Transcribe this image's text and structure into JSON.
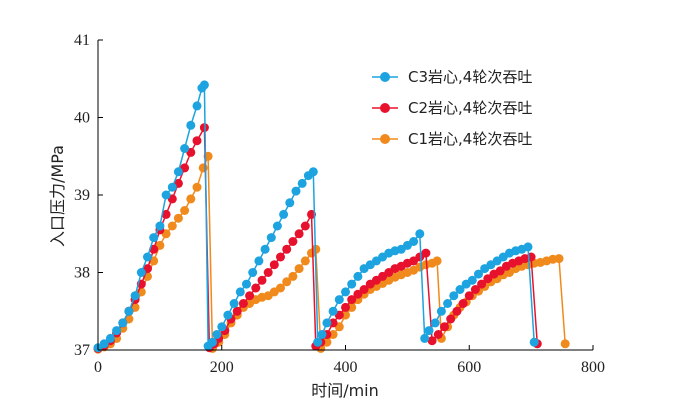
{
  "chart_data": {
    "type": "line",
    "xlabel": "时间/min",
    "ylabel": "入口压力/MPa",
    "xlim": [
      0,
      800
    ],
    "ylim": [
      37,
      41
    ],
    "xticks": [
      "0",
      "200",
      "400",
      "600",
      "800"
    ],
    "yticks": [
      "37",
      "38",
      "39",
      "40",
      "41"
    ],
    "grid": false,
    "legend_position": "top-right",
    "series": [
      {
        "name": "C3岩心,4轮次吞吐",
        "color": "#1ca3e0",
        "points": [
          [
            0,
            37.03
          ],
          [
            10,
            37.08
          ],
          [
            20,
            37.15
          ],
          [
            30,
            37.25
          ],
          [
            40,
            37.35
          ],
          [
            50,
            37.5
          ],
          [
            60,
            37.7
          ],
          [
            70,
            38.0
          ],
          [
            80,
            38.2
          ],
          [
            90,
            38.45
          ],
          [
            100,
            38.6
          ],
          [
            110,
            39.0
          ],
          [
            120,
            39.1
          ],
          [
            130,
            39.3
          ],
          [
            140,
            39.6
          ],
          [
            150,
            39.9
          ],
          [
            160,
            40.15
          ],
          [
            168,
            40.38
          ],
          [
            172,
            40.42
          ],
          [
            178,
            37.05
          ],
          [
            185,
            37.1
          ],
          [
            192,
            37.2
          ],
          [
            200,
            37.3
          ],
          [
            210,
            37.45
          ],
          [
            220,
            37.6
          ],
          [
            230,
            37.75
          ],
          [
            240,
            37.85
          ],
          [
            250,
            38.0
          ],
          [
            260,
            38.15
          ],
          [
            270,
            38.3
          ],
          [
            280,
            38.45
          ],
          [
            290,
            38.6
          ],
          [
            300,
            38.75
          ],
          [
            310,
            38.9
          ],
          [
            320,
            39.05
          ],
          [
            330,
            39.15
          ],
          [
            340,
            39.25
          ],
          [
            348,
            39.3
          ],
          [
            355,
            37.1
          ],
          [
            362,
            37.2
          ],
          [
            370,
            37.35
          ],
          [
            380,
            37.5
          ],
          [
            390,
            37.65
          ],
          [
            400,
            37.75
          ],
          [
            410,
            37.85
          ],
          [
            420,
            37.95
          ],
          [
            430,
            38.05
          ],
          [
            440,
            38.1
          ],
          [
            450,
            38.15
          ],
          [
            460,
            38.2
          ],
          [
            470,
            38.25
          ],
          [
            480,
            38.28
          ],
          [
            490,
            38.3
          ],
          [
            500,
            38.35
          ],
          [
            510,
            38.4
          ],
          [
            520,
            38.5
          ],
          [
            528,
            37.15
          ],
          [
            535,
            37.25
          ],
          [
            545,
            37.35
          ],
          [
            555,
            37.5
          ],
          [
            565,
            37.6
          ],
          [
            575,
            37.7
          ],
          [
            585,
            37.78
          ],
          [
            595,
            37.85
          ],
          [
            605,
            37.9
          ],
          [
            615,
            37.98
          ],
          [
            625,
            38.05
          ],
          [
            635,
            38.1
          ],
          [
            645,
            38.15
          ],
          [
            655,
            38.2
          ],
          [
            665,
            38.25
          ],
          [
            675,
            38.28
          ],
          [
            685,
            38.3
          ],
          [
            695,
            38.33
          ],
          [
            705,
            37.1
          ]
        ]
      },
      {
        "name": "C2岩心,4轮次吞吐",
        "color": "#e8112d",
        "points": [
          [
            0,
            37.02
          ],
          [
            10,
            37.06
          ],
          [
            20,
            37.12
          ],
          [
            30,
            37.22
          ],
          [
            40,
            37.35
          ],
          [
            50,
            37.5
          ],
          [
            60,
            37.65
          ],
          [
            70,
            37.85
          ],
          [
            80,
            38.05
          ],
          [
            90,
            38.3
          ],
          [
            100,
            38.55
          ],
          [
            110,
            38.75
          ],
          [
            120,
            38.95
          ],
          [
            130,
            39.15
          ],
          [
            140,
            39.35
          ],
          [
            150,
            39.55
          ],
          [
            160,
            39.7
          ],
          [
            172,
            39.87
          ],
          [
            180,
            37.03
          ],
          [
            188,
            37.08
          ],
          [
            195,
            37.15
          ],
          [
            205,
            37.25
          ],
          [
            215,
            37.4
          ],
          [
            225,
            37.5
          ],
          [
            235,
            37.6
          ],
          [
            245,
            37.7
          ],
          [
            255,
            37.8
          ],
          [
            265,
            37.9
          ],
          [
            275,
            38.0
          ],
          [
            285,
            38.1
          ],
          [
            295,
            38.2
          ],
          [
            305,
            38.3
          ],
          [
            315,
            38.4
          ],
          [
            325,
            38.5
          ],
          [
            335,
            38.6
          ],
          [
            345,
            38.75
          ],
          [
            352,
            37.05
          ],
          [
            360,
            37.1
          ],
          [
            370,
            37.2
          ],
          [
            380,
            37.35
          ],
          [
            390,
            37.45
          ],
          [
            400,
            37.55
          ],
          [
            410,
            37.65
          ],
          [
            420,
            37.72
          ],
          [
            430,
            37.78
          ],
          [
            440,
            37.85
          ],
          [
            450,
            37.9
          ],
          [
            460,
            37.95
          ],
          [
            470,
            38.0
          ],
          [
            480,
            38.05
          ],
          [
            490,
            38.08
          ],
          [
            500,
            38.12
          ],
          [
            510,
            38.15
          ],
          [
            520,
            38.2
          ],
          [
            530,
            38.25
          ],
          [
            540,
            37.12
          ],
          [
            550,
            37.2
          ],
          [
            560,
            37.3
          ],
          [
            570,
            37.4
          ],
          [
            580,
            37.5
          ],
          [
            590,
            37.6
          ],
          [
            600,
            37.7
          ],
          [
            610,
            37.78
          ],
          [
            620,
            37.85
          ],
          [
            630,
            37.92
          ],
          [
            640,
            37.98
          ],
          [
            650,
            38.02
          ],
          [
            660,
            38.08
          ],
          [
            670,
            38.12
          ],
          [
            680,
            38.15
          ],
          [
            690,
            38.18
          ],
          [
            700,
            38.2
          ],
          [
            710,
            37.08
          ]
        ]
      },
      {
        "name": "C1岩心,4轮次吞吐",
        "color": "#f08a1c",
        "points": [
          [
            0,
            37.01
          ],
          [
            10,
            37.04
          ],
          [
            20,
            37.08
          ],
          [
            30,
            37.15
          ],
          [
            40,
            37.28
          ],
          [
            50,
            37.4
          ],
          [
            60,
            37.55
          ],
          [
            70,
            37.75
          ],
          [
            80,
            37.95
          ],
          [
            90,
            38.15
          ],
          [
            100,
            38.35
          ],
          [
            110,
            38.5
          ],
          [
            120,
            38.6
          ],
          [
            130,
            38.7
          ],
          [
            140,
            38.8
          ],
          [
            150,
            38.95
          ],
          [
            160,
            39.1
          ],
          [
            170,
            39.35
          ],
          [
            178,
            39.5
          ],
          [
            185,
            37.02
          ],
          [
            195,
            37.1
          ],
          [
            205,
            37.2
          ],
          [
            215,
            37.35
          ],
          [
            225,
            37.45
          ],
          [
            235,
            37.55
          ],
          [
            245,
            37.6
          ],
          [
            255,
            37.65
          ],
          [
            265,
            37.68
          ],
          [
            275,
            37.7
          ],
          [
            285,
            37.75
          ],
          [
            295,
            37.8
          ],
          [
            305,
            37.88
          ],
          [
            315,
            37.95
          ],
          [
            325,
            38.05
          ],
          [
            335,
            38.15
          ],
          [
            345,
            38.25
          ],
          [
            352,
            38.3
          ],
          [
            360,
            37.02
          ],
          [
            370,
            37.1
          ],
          [
            380,
            37.2
          ],
          [
            390,
            37.3
          ],
          [
            400,
            37.45
          ],
          [
            410,
            37.55
          ],
          [
            420,
            37.65
          ],
          [
            430,
            37.72
          ],
          [
            440,
            37.78
          ],
          [
            450,
            37.82
          ],
          [
            460,
            37.86
          ],
          [
            470,
            37.9
          ],
          [
            480,
            37.94
          ],
          [
            490,
            37.97
          ],
          [
            500,
            38.0
          ],
          [
            510,
            38.03
          ],
          [
            520,
            38.07
          ],
          [
            530,
            38.1
          ],
          [
            540,
            38.12
          ],
          [
            548,
            38.15
          ],
          [
            555,
            37.15
          ],
          [
            565,
            37.3
          ],
          [
            575,
            37.45
          ],
          [
            585,
            37.55
          ],
          [
            595,
            37.62
          ],
          [
            605,
            37.7
          ],
          [
            615,
            37.76
          ],
          [
            625,
            37.82
          ],
          [
            635,
            37.88
          ],
          [
            645,
            37.92
          ],
          [
            655,
            37.97
          ],
          [
            665,
            38.0
          ],
          [
            675,
            38.05
          ],
          [
            685,
            38.08
          ],
          [
            695,
            38.1
          ],
          [
            705,
            38.12
          ],
          [
            715,
            38.13
          ],
          [
            725,
            38.15
          ],
          [
            735,
            38.17
          ],
          [
            745,
            38.18
          ],
          [
            755,
            37.08
          ]
        ]
      }
    ]
  }
}
